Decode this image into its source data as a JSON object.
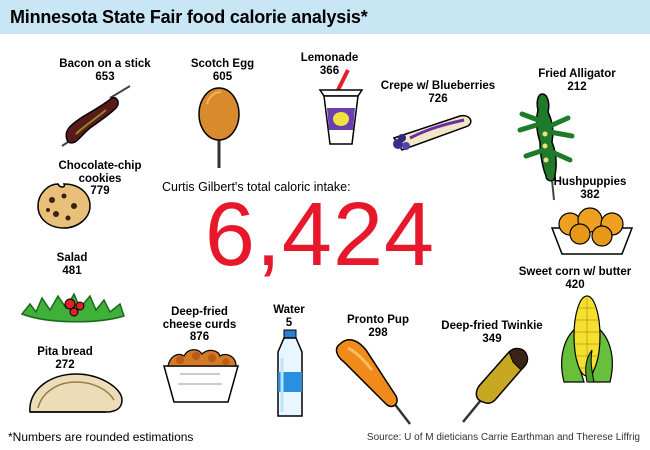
{
  "title": "Minnesota State Fair food calorie analysis*",
  "intake_label": "Curtis Gilbert's total caloric intake:",
  "total_calories": "6,424",
  "footnote": "*Numbers are rounded estimations",
  "source": "Source: U of M dieticians Carrie Earthman and Therese Liffrig",
  "colors": {
    "header_bg": "#c8e6f3",
    "total": "#e8182c"
  },
  "foods": [
    {
      "name": "Bacon on a stick",
      "calories": "653"
    },
    {
      "name": "Scotch Egg",
      "calories": "605"
    },
    {
      "name": "Lemonade",
      "calories": "366"
    },
    {
      "name": "Crepe w/ Blueberries",
      "calories": "726"
    },
    {
      "name": "Fried Alligator",
      "calories": "212"
    },
    {
      "name": "Chocolate-chip cookies",
      "calories": "779"
    },
    {
      "name": "Hushpuppies",
      "calories": "382"
    },
    {
      "name": "Salad",
      "calories": "481"
    },
    {
      "name": "Sweet corn w/ butter",
      "calories": "420"
    },
    {
      "name": "Deep-fried cheese curds",
      "calories": "876"
    },
    {
      "name": "Water",
      "calories": "5"
    },
    {
      "name": "Pronto Pup",
      "calories": "298"
    },
    {
      "name": "Deep-fried Twinkie",
      "calories": "349"
    },
    {
      "name": "Pita bread",
      "calories": "272"
    }
  ]
}
